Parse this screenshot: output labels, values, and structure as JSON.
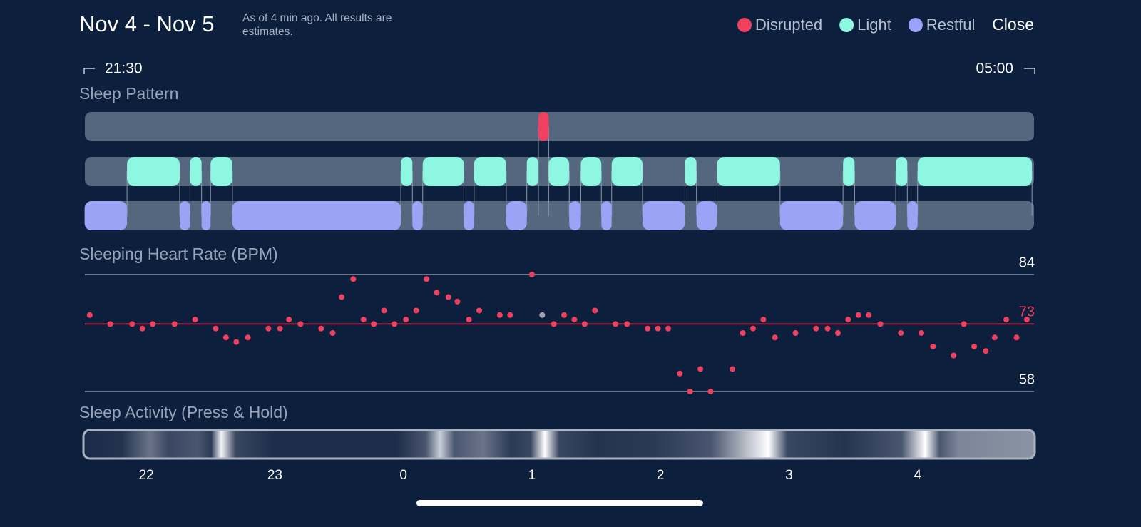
{
  "header": {
    "title": "Nov 4 - Nov 5",
    "subtitle": "As of 4 min ago. All results are estimates.",
    "close": "Close"
  },
  "legend": [
    {
      "name": "Disrupted",
      "color": "#f0405f"
    },
    {
      "name": "Light",
      "color": "#8ef7e2"
    },
    {
      "name": "Restful",
      "color": "#9aa3f5"
    }
  ],
  "time_range": {
    "start": "21:30",
    "end": "05:00"
  },
  "xlim": [
    21.5,
    29
  ],
  "xticks": [
    22,
    23,
    {
      "value": 24,
      "label": "0"
    },
    {
      "value": 25,
      "label": "1"
    },
    {
      "value": 26,
      "label": "2"
    },
    {
      "value": 27,
      "label": "3"
    },
    {
      "value": 28,
      "label": "4"
    }
  ],
  "sleep_pattern": {
    "title": "Sleep Pattern",
    "stages": [
      {
        "segments": [
          [
            25.05,
            25.13
          ]
        ]
      },
      {
        "segments": [
          [
            21.85,
            22.26
          ],
          [
            22.34,
            22.43
          ],
          [
            22.5,
            22.67
          ],
          [
            23.98,
            24.07
          ],
          [
            24.15,
            24.47
          ],
          [
            24.55,
            24.8
          ],
          [
            24.96,
            25.05
          ],
          [
            25.13,
            25.29
          ],
          [
            25.38,
            25.54
          ],
          [
            25.62,
            25.86
          ],
          [
            26.19,
            26.28
          ],
          [
            26.44,
            26.93
          ],
          [
            27.42,
            27.51
          ],
          [
            27.83,
            27.92
          ],
          [
            28.0,
            28.89
          ]
        ]
      },
      {
        "segments": [
          [
            21.52,
            21.85
          ],
          [
            22.26,
            22.34
          ],
          [
            22.43,
            22.5
          ],
          [
            22.67,
            23.98
          ],
          [
            24.07,
            24.15
          ],
          [
            24.47,
            24.55
          ],
          [
            24.8,
            24.96
          ],
          [
            25.29,
            25.38
          ],
          [
            25.54,
            25.62
          ],
          [
            25.86,
            26.19
          ],
          [
            26.28,
            26.44
          ],
          [
            26.93,
            27.42
          ],
          [
            27.51,
            27.83
          ],
          [
            27.92,
            28.0
          ]
        ]
      }
    ]
  },
  "heart_rate": {
    "title": "Sleeping Heart Rate (BPM)",
    "ylim": [
      58,
      84
    ],
    "yticks": [
      58,
      84
    ],
    "average": 73,
    "x": [
      21.56,
      21.72,
      21.89,
      21.97,
      22.05,
      22.22,
      22.38,
      22.54,
      22.62,
      22.7,
      22.79,
      22.95,
      23.04,
      23.11,
      23.2,
      23.36,
      23.45,
      23.52,
      23.61,
      23.69,
      23.77,
      23.85,
      23.93,
      24.02,
      24.1,
      24.18,
      24.26,
      24.35,
      24.42,
      24.51,
      24.59,
      24.75,
      24.83,
      25.0,
      25.08,
      25.17,
      25.25,
      25.33,
      25.41,
      25.49,
      25.65,
      25.74,
      25.9,
      25.98,
      26.06,
      26.15,
      26.23,
      26.31,
      26.39,
      26.56,
      26.64,
      26.72,
      26.8,
      26.89,
      27.05,
      27.21,
      27.3,
      27.38,
      27.46,
      27.54,
      27.62,
      27.71,
      27.87,
      28.03,
      28.12,
      28.28,
      28.36,
      28.44,
      28.53,
      28.6,
      28.69,
      28.77,
      28.85
    ],
    "values": [
      75,
      73,
      73,
      72,
      73,
      73,
      74,
      72,
      70,
      69,
      70,
      72,
      72,
      74,
      73,
      72,
      71,
      79,
      83,
      74,
      73,
      76,
      73,
      74,
      76,
      83,
      80,
      79,
      78,
      74,
      76,
      75,
      75,
      84,
      75,
      73,
      75,
      74,
      73,
      76,
      73,
      73,
      72,
      72,
      72,
      62,
      58,
      63,
      58,
      63,
      71,
      72,
      74,
      70,
      71,
      72,
      72,
      71,
      74,
      75,
      75,
      73,
      71,
      71,
      68,
      66,
      73,
      68,
      67,
      70,
      74,
      70,
      74
    ],
    "color": "#f0405f",
    "muted_color": "#a3a7b0",
    "muted_points": [
      34
    ]
  },
  "sleep_activity": {
    "title": "Sleep Activity (Press & Hold)"
  }
}
